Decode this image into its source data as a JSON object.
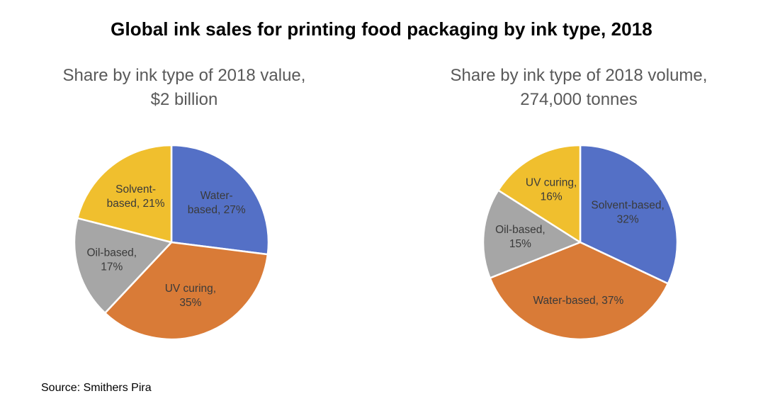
{
  "title": "Global ink sales for printing food packaging by ink type, 2018",
  "source": "Source: Smithers Pira",
  "chart_data": [
    {
      "type": "pie",
      "title": [
        "Share by ink type of 2018 value,",
        "$2 billion"
      ],
      "slices": [
        {
          "label": [
            "Water-",
            "based, 27%"
          ],
          "category": "Water-based",
          "value": 27,
          "color": "#5470c6"
        },
        {
          "label": [
            "UV curing,",
            "35%"
          ],
          "category": "UV curing",
          "value": 35,
          "color": "#d97b37"
        },
        {
          "label": [
            "Oil-based,",
            "17%"
          ],
          "category": "Oil-based",
          "value": 17,
          "color": "#a6a6a6"
        },
        {
          "label": [
            "Solvent-",
            "based, 21%"
          ],
          "category": "Solvent-based",
          "value": 21,
          "color": "#f0bf2e"
        }
      ]
    },
    {
      "type": "pie",
      "title": [
        "Share by ink type of 2018 volume,",
        "274,000 tonnes"
      ],
      "slices": [
        {
          "label": [
            "Solvent-based,",
            "32%"
          ],
          "category": "Solvent-based",
          "value": 32,
          "color": "#5470c6"
        },
        {
          "label": [
            "Water-based, 37%"
          ],
          "category": "Water-based",
          "value": 37,
          "color": "#d97b37"
        },
        {
          "label": [
            "Oil-based,",
            "15%"
          ],
          "category": "Oil-based",
          "value": 15,
          "color": "#a6a6a6"
        },
        {
          "label": [
            "UV curing,",
            "16%"
          ],
          "category": "UV curing",
          "value": 16,
          "color": "#f0bf2e"
        }
      ]
    }
  ]
}
